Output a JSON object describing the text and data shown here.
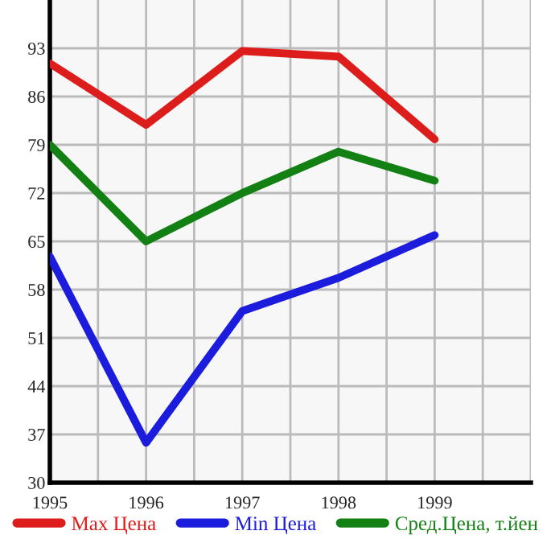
{
  "chart_data": {
    "type": "line",
    "x": [
      1995,
      1996,
      1997,
      1998,
      1999
    ],
    "series": [
      {
        "name": "Max Цена",
        "color": "#dd1c1c",
        "values": [
          90.8,
          81.9,
          92.6,
          91.8,
          79.8
        ]
      },
      {
        "name": "Min Цена",
        "color": "#1c1cdd",
        "values": [
          62.8,
          35.8,
          54.9,
          59.7,
          65.9
        ]
      },
      {
        "name": "Сред.Цена, т.йен",
        "color": "#138013",
        "values": [
          79,
          65,
          72,
          78,
          73.8
        ]
      }
    ],
    "xlim": [
      1995,
      2000
    ],
    "xticks": [
      1995,
      {
        "value": 1995.5,
        "label": null
      },
      1996,
      {
        "value": 1996.5,
        "label": null
      },
      1997,
      {
        "value": 1997.5,
        "label": null
      },
      1998,
      {
        "value": 1998.5,
        "label": null
      },
      1999,
      {
        "value": 1999.5,
        "label": null
      },
      {
        "value": 2000,
        "label": null
      }
    ],
    "ylim": [
      30,
      100
    ],
    "yticks": [
      30,
      37,
      44,
      51,
      58,
      65,
      72,
      79,
      86,
      93
    ],
    "grid": true,
    "legend": "bottom",
    "marker": "none",
    "line_style": "solid"
  }
}
